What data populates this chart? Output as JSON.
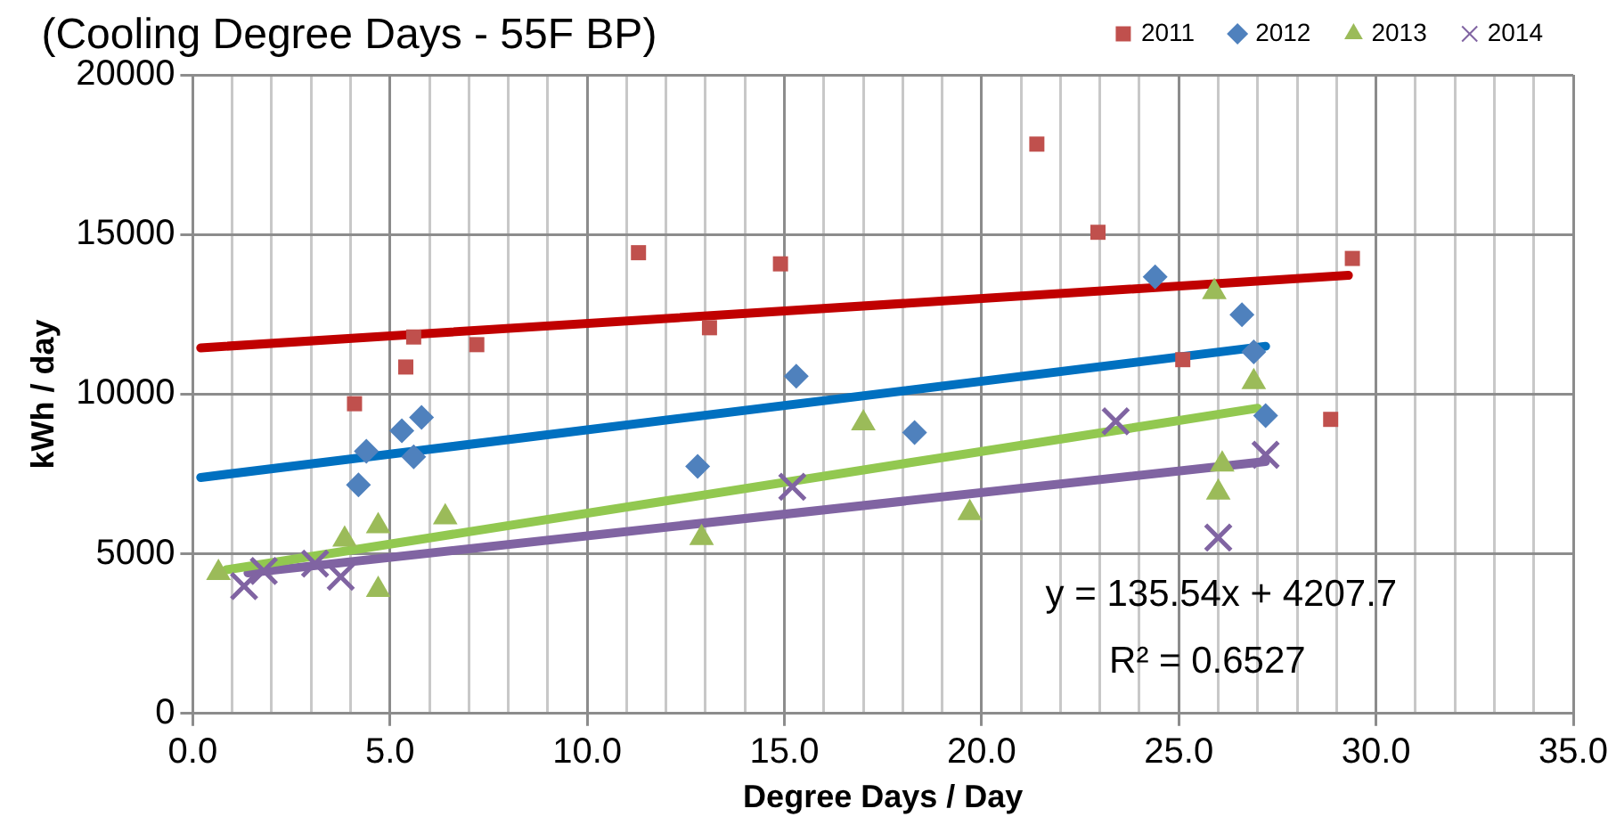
{
  "chart_data": {
    "type": "scatter",
    "title": "(Cooling Degree Days - 55F BP)",
    "xlabel": "Degree Days / Day",
    "ylabel": "kWh / day",
    "xlim": [
      0,
      35
    ],
    "ylim": [
      0,
      20000
    ],
    "xticks": [
      {
        "value": 0,
        "label": "0.0"
      },
      {
        "value": 1,
        "label": null
      },
      {
        "value": 2,
        "label": null
      },
      {
        "value": 3,
        "label": null
      },
      {
        "value": 4,
        "label": null
      },
      {
        "value": 5,
        "label": "5.0"
      },
      {
        "value": 6,
        "label": null
      },
      {
        "value": 7,
        "label": null
      },
      {
        "value": 8,
        "label": null
      },
      {
        "value": 9,
        "label": null
      },
      {
        "value": 10,
        "label": "10.0"
      },
      {
        "value": 11,
        "label": null
      },
      {
        "value": 12,
        "label": null
      },
      {
        "value": 13,
        "label": null
      },
      {
        "value": 14,
        "label": null
      },
      {
        "value": 15,
        "label": "15.0"
      },
      {
        "value": 16,
        "label": null
      },
      {
        "value": 17,
        "label": null
      },
      {
        "value": 18,
        "label": null
      },
      {
        "value": 19,
        "label": null
      },
      {
        "value": 20,
        "label": "20.0"
      },
      {
        "value": 21,
        "label": null
      },
      {
        "value": 22,
        "label": null
      },
      {
        "value": 23,
        "label": null
      },
      {
        "value": 24,
        "label": null
      },
      {
        "value": 25,
        "label": "25.0"
      },
      {
        "value": 26,
        "label": null
      },
      {
        "value": 27,
        "label": null
      },
      {
        "value": 28,
        "label": null
      },
      {
        "value": 29,
        "label": null
      },
      {
        "value": 30,
        "label": "30.0"
      },
      {
        "value": 31,
        "label": null
      },
      {
        "value": 32,
        "label": null
      },
      {
        "value": 33,
        "label": null
      },
      {
        "value": 34,
        "label": null
      },
      {
        "value": 35,
        "label": "35.0"
      }
    ],
    "yticks": [
      0,
      5000,
      10000,
      15000,
      20000
    ],
    "grid": true,
    "legend": "top right",
    "annotations": [
      "y = 135.54x + 4207.7",
      "R² = 0.6527"
    ],
    "series": [
      {
        "name": "2011",
        "color": "#c0504d",
        "marker": "square",
        "x": [
          4.1,
          5.4,
          5.6,
          7.2,
          11.3,
          13.1,
          14.9,
          21.4,
          22.95,
          25.1,
          28.85,
          29.4
        ],
        "values": [
          9700,
          10850,
          11790,
          11550,
          14430,
          12080,
          14080,
          17830,
          15070,
          11080,
          9210,
          14250
        ]
      },
      {
        "name": "2012",
        "color": "#4f81bd",
        "marker": "diamond",
        "x": [
          4.2,
          4.4,
          5.3,
          5.6,
          5.8,
          12.8,
          15.3,
          18.3,
          24.4,
          26.6,
          26.9,
          27.2
        ],
        "values": [
          7160,
          8210,
          8850,
          8040,
          9270,
          7740,
          10560,
          8800,
          13670,
          12490,
          11320,
          9330
        ]
      },
      {
        "name": "2013",
        "color": "#9bbb59",
        "marker": "triangle",
        "x": [
          0.65,
          3.85,
          4.7,
          4.7,
          6.4,
          12.9,
          17.0,
          19.7,
          25.9,
          26.0,
          26.1,
          26.9
        ],
        "values": [
          4400,
          5450,
          5870,
          3870,
          6150,
          5500,
          9090,
          6280,
          13200,
          6920,
          7800,
          10380
        ]
      },
      {
        "name": "2014",
        "color": "#8064a2",
        "marker": "cross",
        "x": [
          1.3,
          1.8,
          3.1,
          3.75,
          15.2,
          23.4,
          26.0,
          27.2
        ],
        "values": [
          3990,
          4460,
          4690,
          4280,
          7100,
          9150,
          5510,
          8100
        ]
      },
      {
        "type": "line",
        "color": "#c00000",
        "marker": "none",
        "x": [
          0.2,
          29.3
        ],
        "values": [
          11450,
          13720
        ]
      },
      {
        "type": "line",
        "color": "#0070c0",
        "marker": "none",
        "x": [
          0.2,
          27.2
        ],
        "values": [
          7390,
          11500
        ]
      },
      {
        "type": "line",
        "color": "#92c850",
        "marker": "none",
        "x": [
          0.85,
          27.0
        ],
        "values": [
          4500,
          9560
        ]
      },
      {
        "type": "line",
        "color": "#8064a2",
        "marker": "none",
        "x": [
          1.4,
          27.2
        ],
        "values": [
          4400,
          7890
        ]
      }
    ]
  }
}
